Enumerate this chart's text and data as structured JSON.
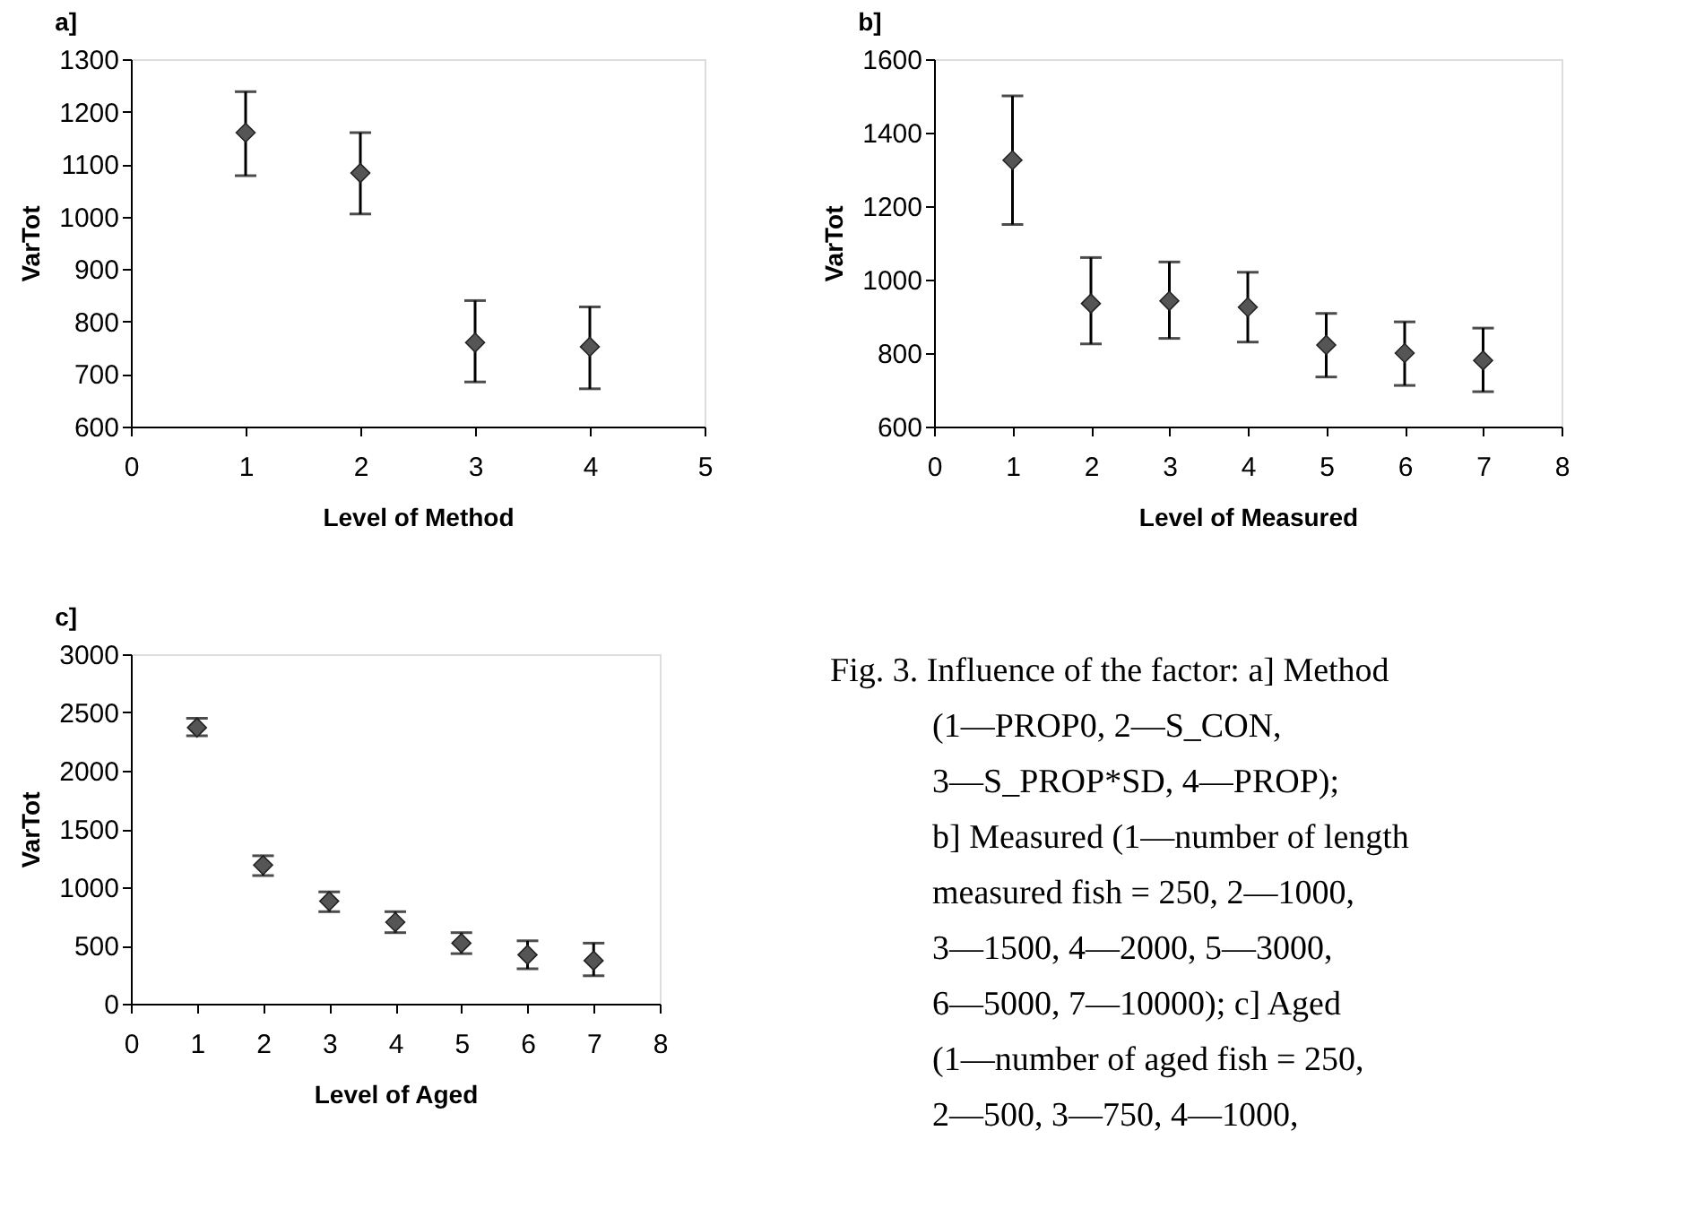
{
  "chart_data": [
    {
      "type": "scatter",
      "title": "a]",
      "xlabel": "Level of Method",
      "ylabel": "VarTot",
      "marker": "diamond",
      "grid": false,
      "color": "#555555",
      "x": [
        1,
        2,
        3,
        4
      ],
      "values": [
        1160,
        1083,
        760,
        752
      ],
      "errors": [
        [
          1078,
          1238
        ],
        [
          1005,
          1160
        ],
        [
          685,
          840
        ],
        [
          672,
          828
        ]
      ],
      "xlim": [
        0,
        5
      ],
      "xticks": [
        0,
        1,
        2,
        3,
        4,
        5
      ],
      "ylim": [
        600,
        1300
      ],
      "yticks": [
        600,
        700,
        800,
        900,
        1000,
        1100,
        1200,
        1300
      ]
    },
    {
      "type": "scatter",
      "title": "b]",
      "xlabel": "Level of Measured",
      "ylabel": "VarTot",
      "marker": "diamond",
      "grid": false,
      "color": "#555555",
      "x": [
        1,
        2,
        3,
        4,
        5,
        6,
        7
      ],
      "values": [
        1325,
        935,
        942,
        925,
        822,
        800,
        780
      ],
      "errors": [
        [
          1150,
          1500
        ],
        [
          825,
          1060
        ],
        [
          840,
          1048
        ],
        [
          830,
          1020
        ],
        [
          735,
          908
        ],
        [
          712,
          885
        ],
        [
          695,
          868
        ]
      ],
      "xlim": [
        0,
        8
      ],
      "xticks": [
        0,
        1,
        2,
        3,
        4,
        5,
        6,
        7,
        8
      ],
      "ylim": [
        600,
        1600
      ],
      "yticks": [
        600,
        800,
        1000,
        1200,
        1400,
        1600
      ]
    },
    {
      "type": "scatter",
      "title": "c]",
      "xlabel": "Level of Aged",
      "ylabel": "VarTot",
      "marker": "diamond",
      "grid": false,
      "color": "#555555",
      "x": [
        1,
        2,
        3,
        4,
        5,
        6,
        7
      ],
      "values": [
        2370,
        1190,
        880,
        700,
        520,
        420,
        370
      ],
      "errors": [
        [
          2300,
          2450
        ],
        [
          1100,
          1270
        ],
        [
          790,
          960
        ],
        [
          610,
          790
        ],
        [
          430,
          610
        ],
        [
          300,
          540
        ],
        [
          240,
          520
        ]
      ],
      "xlim": [
        0,
        8
      ],
      "xticks": [
        0,
        1,
        2,
        3,
        4,
        5,
        6,
        7,
        8
      ],
      "ylim": [
        0,
        3000
      ],
      "yticks": [
        0,
        500,
        1000,
        1500,
        2000,
        2500,
        3000
      ]
    },
    {
      "type": "other",
      "annotations": [
        "Fig. 3. Influence of the factor: a] Method",
        "(1—PROP0, 2—S_CON,",
        "3—S_PROP*SD, 4—PROP);",
        "b] Measured (1—number of length",
        "measured fish = 250, 2—1000,",
        "3—1500, 4—2000, 5—3000,",
        "6—5000, 7—10000); c] Aged",
        "(1—number of aged fish = 250,",
        "2—500, 3—750, 4—1000,"
      ]
    }
  ]
}
